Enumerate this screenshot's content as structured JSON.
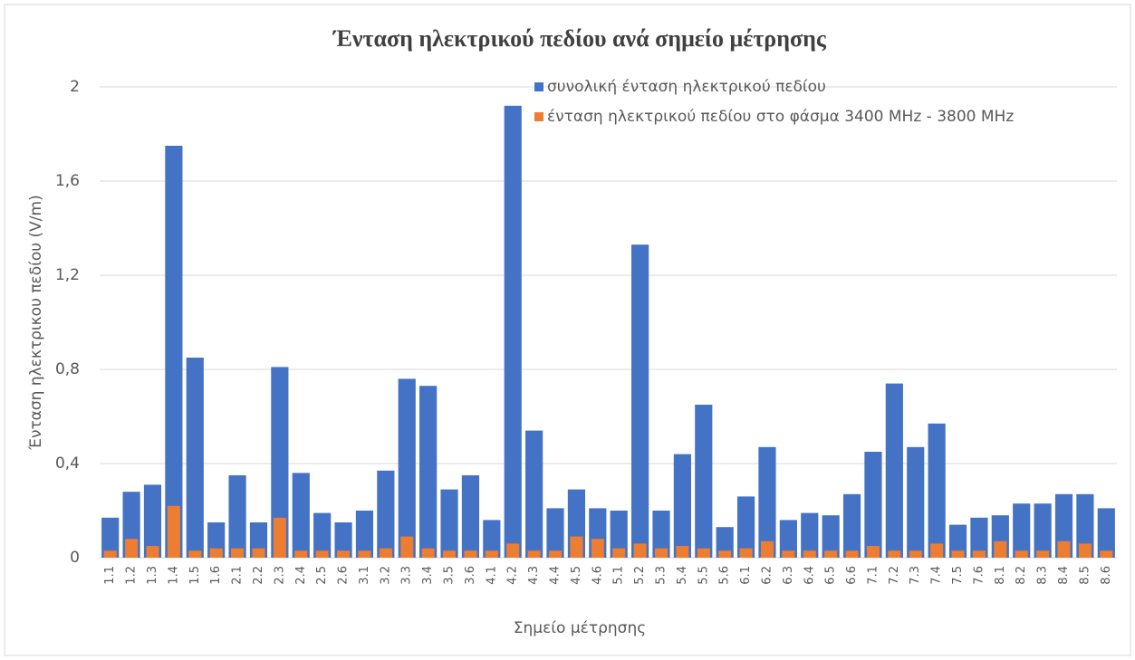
{
  "chart_data": {
    "type": "bar",
    "overlap": true,
    "title": "Ένταση ηλεκτρικού πεδίου ανά σημείο μέτρησης",
    "x_label": "Σημείο μέτρησης",
    "y_label": "Ένταση ηλεκτρικου πεδίου (V/m)",
    "categories": [
      "1.1",
      "1.2",
      "1.3",
      "1.4",
      "1.5",
      "1.6",
      "2.1",
      "2.2",
      "2.3",
      "2.4",
      "2.5",
      "2.6",
      "3.1",
      "3.2",
      "3.3",
      "3.4",
      "3.5",
      "3.6",
      "4.1",
      "4.2",
      "4.3",
      "4.4",
      "4.5",
      "4.6",
      "5.1",
      "5.2",
      "5.3",
      "5.4",
      "5.5",
      "5.6",
      "6.1",
      "6.2",
      "6.3",
      "6.4",
      "6.5",
      "6.6",
      "7.1",
      "7.2",
      "7.3",
      "7.4",
      "7.5",
      "7.6",
      "8.1",
      "8.2",
      "8.3",
      "8.4",
      "8.5",
      "8.6"
    ],
    "series": [
      {
        "name": "συνολική ένταση ηλεκτρικού πεδίου",
        "color": "#4472c4",
        "values": [
          0.17,
          0.28,
          0.31,
          1.75,
          0.85,
          0.15,
          0.35,
          0.15,
          0.81,
          0.36,
          0.19,
          0.15,
          0.2,
          0.37,
          0.76,
          0.73,
          0.29,
          0.35,
          0.16,
          1.92,
          0.54,
          0.21,
          0.29,
          0.21,
          0.2,
          1.33,
          0.2,
          0.44,
          0.65,
          0.13,
          0.26,
          0.47,
          0.16,
          0.19,
          0.18,
          0.27,
          0.45,
          0.74,
          0.47,
          0.57,
          0.14,
          0.17,
          0.18,
          0.23,
          0.23,
          0.27,
          0.27,
          0.21
        ]
      },
      {
        "name": "ένταση ηλεκτρικού πεδίου στο φάσμα 3400 MHz - 3800 MHz",
        "color": "#ed7d31",
        "values": [
          0.03,
          0.08,
          0.05,
          0.22,
          0.03,
          0.04,
          0.04,
          0.04,
          0.17,
          0.03,
          0.03,
          0.03,
          0.03,
          0.04,
          0.09,
          0.04,
          0.03,
          0.03,
          0.03,
          0.06,
          0.03,
          0.03,
          0.09,
          0.08,
          0.04,
          0.06,
          0.04,
          0.05,
          0.04,
          0.03,
          0.04,
          0.07,
          0.03,
          0.03,
          0.03,
          0.03,
          0.05,
          0.03,
          0.03,
          0.06,
          0.03,
          0.03,
          0.07,
          0.03,
          0.03,
          0.07,
          0.06,
          0.03
        ]
      }
    ],
    "ylim": [
      0,
      2
    ],
    "yticks": [
      0,
      {
        "value": 0.4,
        "label": "0,4"
      },
      {
        "value": 0.8,
        "label": "0,8"
      },
      {
        "value": 1.2,
        "label": "1,2"
      },
      {
        "value": 1.6,
        "label": "1,6"
      },
      2
    ],
    "grid": true,
    "legend": "top-right"
  }
}
